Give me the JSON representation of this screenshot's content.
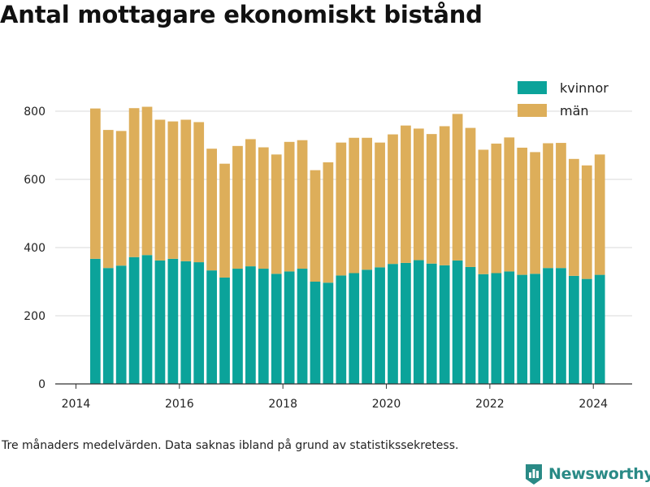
{
  "title": "Antal mottagare ekonomiskt bistånd",
  "footnote": "Tre månaders medelvärden. Data saknas ibland på grund av statistikssekretess.",
  "brand": {
    "name": "Newsworthy",
    "icon": "newsworthy-logo-icon",
    "color": "#2a8a86"
  },
  "colors": {
    "kvinnor": "#0ba39a",
    "man": "#ddae5a",
    "grid": "#d9d9d9",
    "axis": "#333333"
  },
  "chart_data": {
    "type": "bar",
    "stacked": true,
    "title": "",
    "xlabel": "",
    "ylabel": "",
    "ylim": [
      0,
      900
    ],
    "xlim": [
      2013.6,
      2024.75
    ],
    "yticks": [
      0,
      200,
      400,
      600,
      800
    ],
    "xticks": [
      "2014",
      "2016",
      "2018",
      "2020",
      "2022",
      "2024"
    ],
    "grid": true,
    "legend_position": "top-right",
    "x": [
      2014.375,
      2014.625,
      2014.875,
      2015.125,
      2015.375,
      2015.625,
      2015.875,
      2016.125,
      2016.375,
      2016.625,
      2016.875,
      2017.125,
      2017.375,
      2017.625,
      2017.875,
      2018.125,
      2018.375,
      2018.625,
      2018.875,
      2019.125,
      2019.375,
      2019.625,
      2019.875,
      2020.125,
      2020.375,
      2020.625,
      2020.875,
      2021.125,
      2021.375,
      2021.625,
      2021.875,
      2022.125,
      2022.375,
      2022.625,
      2022.875,
      2023.125,
      2023.375,
      2023.625,
      2023.875,
      2024.125
    ],
    "series": [
      {
        "name": "kvinnor",
        "color": "#0ba39a",
        "values": [
          367,
          340,
          347,
          372,
          378,
          362,
          367,
          360,
          357,
          333,
          312,
          338,
          345,
          338,
          323,
          330,
          338,
          300,
          297,
          318,
          325,
          335,
          342,
          352,
          355,
          363,
          353,
          348,
          362,
          343,
          322,
          325,
          330,
          320,
          323,
          340,
          340,
          317,
          308,
          320
        ]
      },
      {
        "name": "män",
        "color": "#ddae5a",
        "values": [
          441,
          405,
          395,
          437,
          435,
          413,
          403,
          415,
          411,
          357,
          334,
          360,
          373,
          356,
          350,
          380,
          377,
          327,
          353,
          390,
          397,
          387,
          366,
          380,
          403,
          386,
          380,
          408,
          430,
          408,
          365,
          380,
          393,
          373,
          357,
          366,
          367,
          343,
          333,
          353
        ]
      }
    ]
  }
}
